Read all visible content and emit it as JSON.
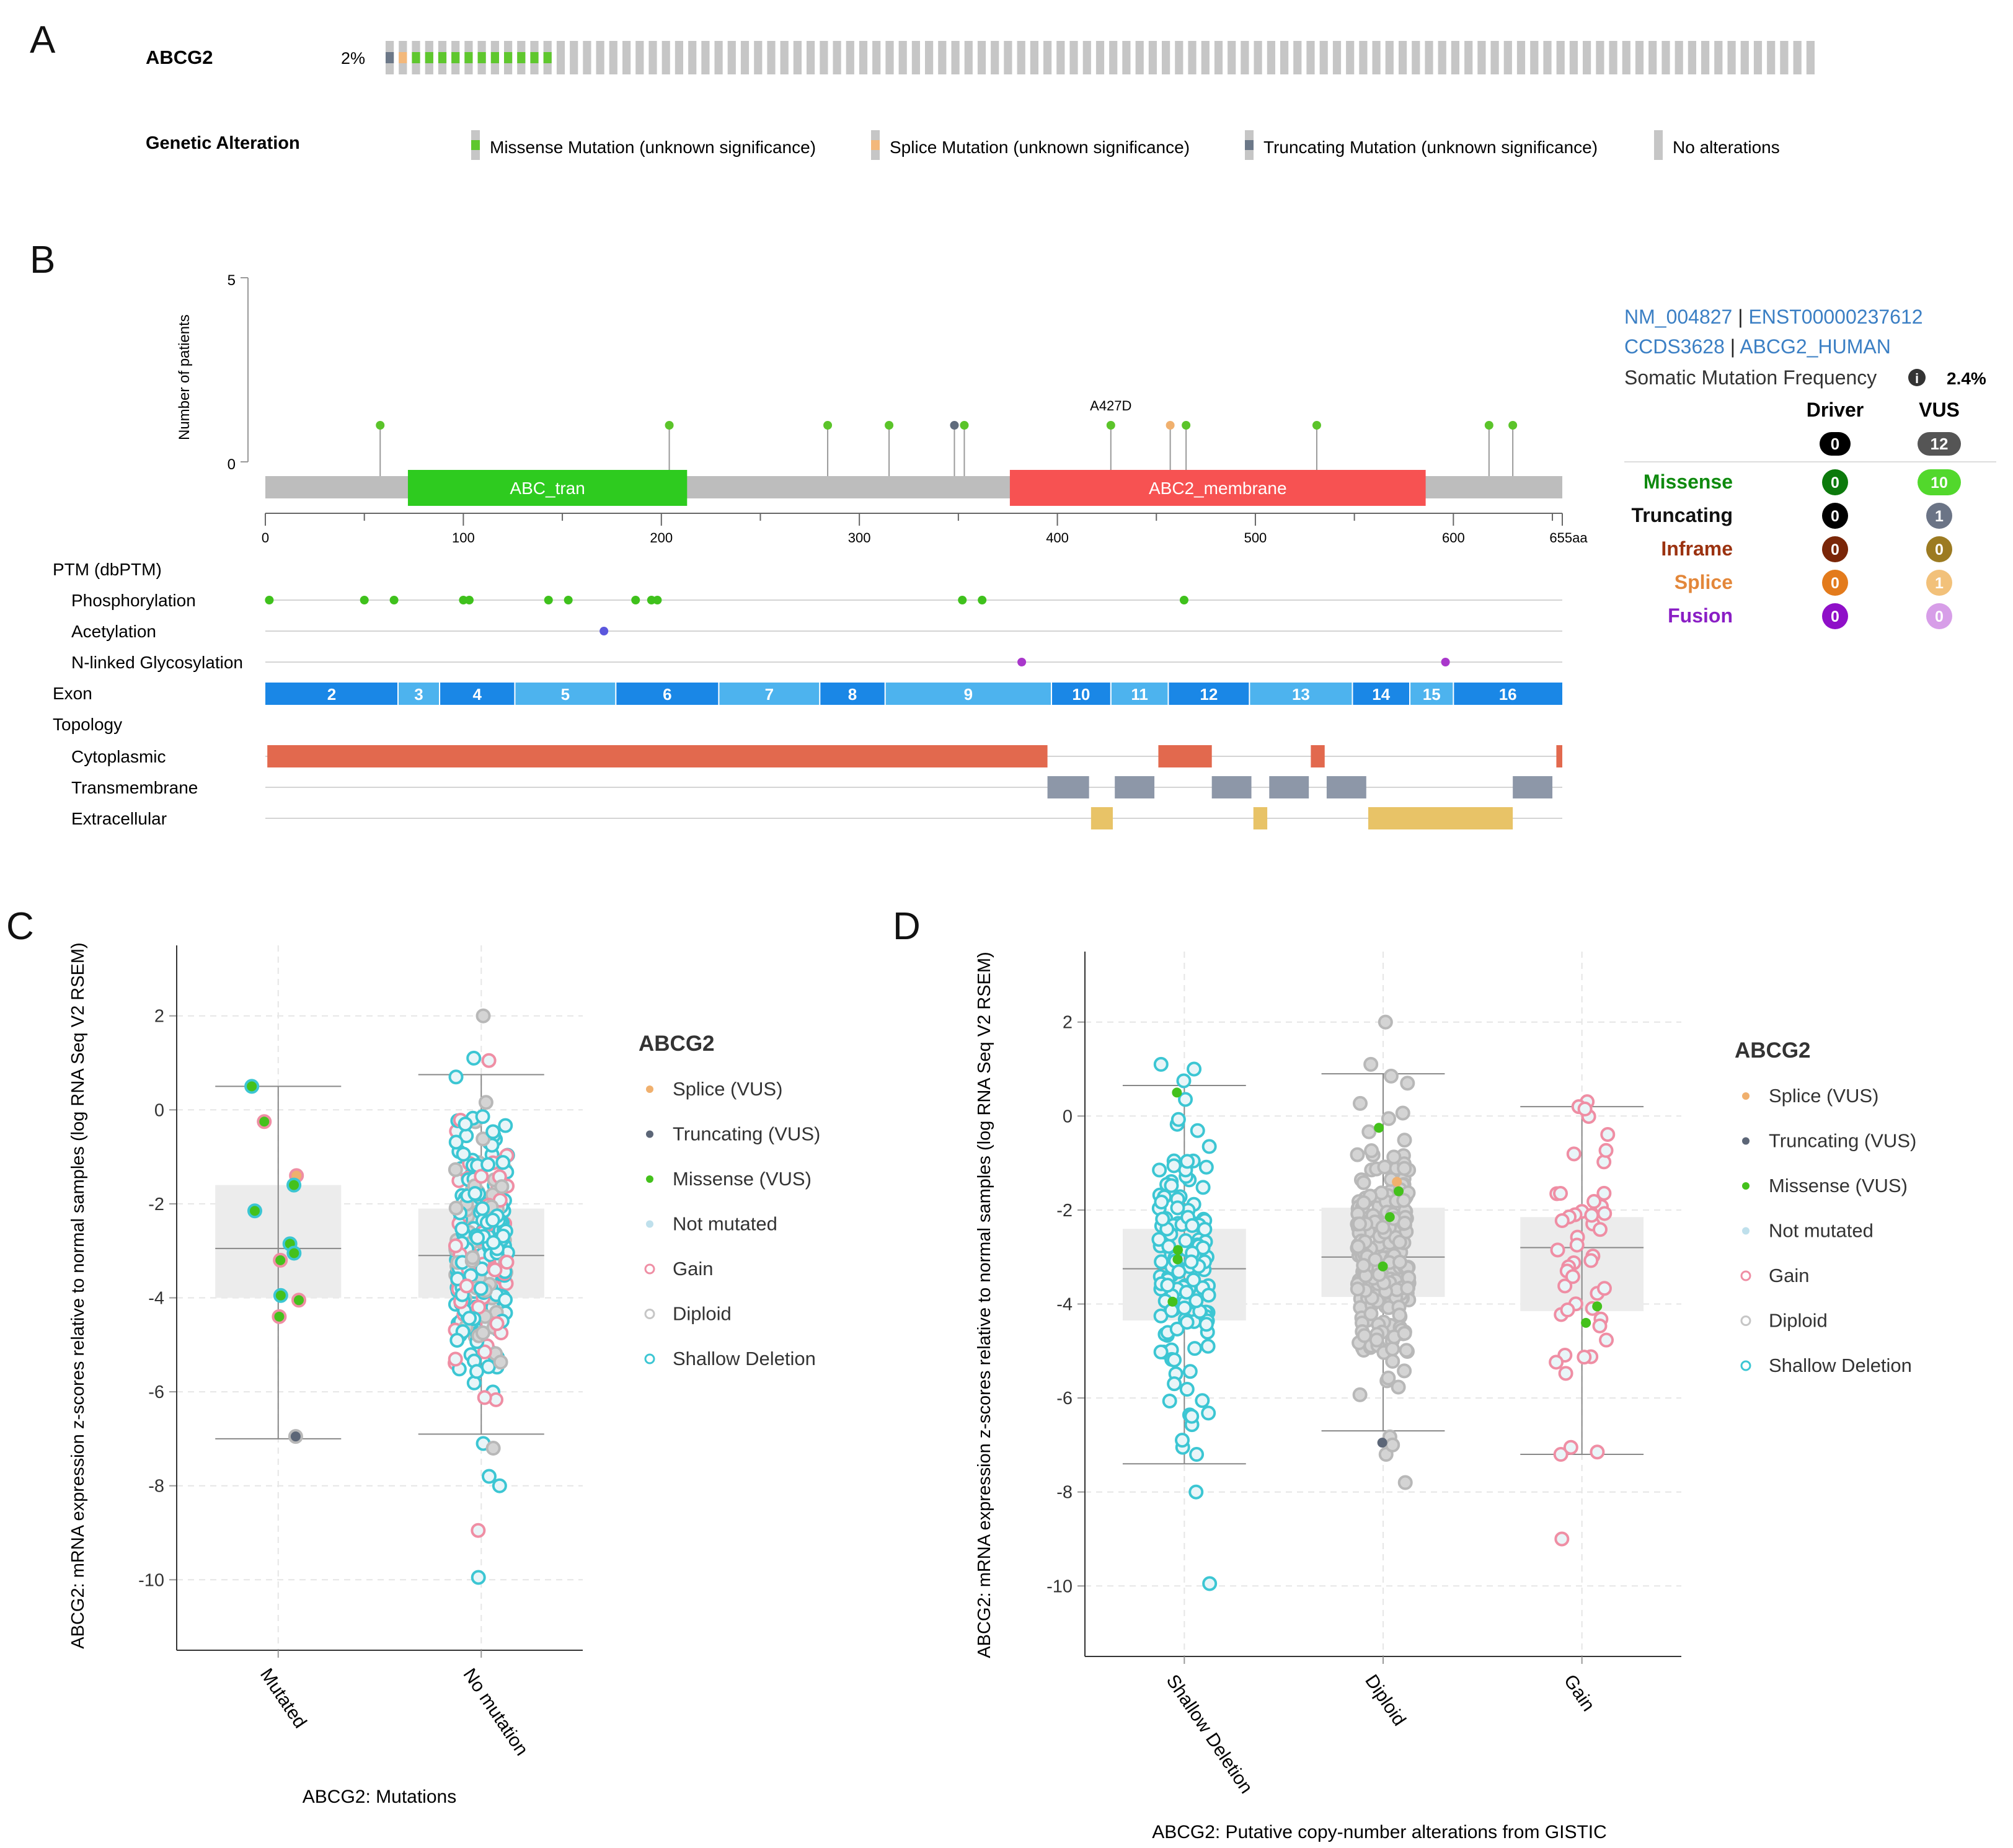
{
  "panel_labels": [
    "A",
    "B",
    "C",
    "D"
  ],
  "panelA": {
    "gene": "ABCG2",
    "freq": "2%",
    "samples": {
      "total": 109,
      "truncating": 1,
      "splice": 1,
      "missense": 11
    },
    "legend_title": "Genetic Alteration",
    "legend": [
      {
        "label": "Missense Mutation (unknown significance)",
        "color": "#5fc72e"
      },
      {
        "label": "Splice Mutation (unknown significance)",
        "color": "#f3b87b"
      },
      {
        "label": "Truncating Mutation (unknown significance)",
        "color": "#6c7888"
      },
      {
        "label": "No alterations",
        "color": "#c6c6c6"
      }
    ]
  },
  "panelB": {
    "ylabel": "Number of patients",
    "yticks": [
      "0",
      "5"
    ],
    "length": 655,
    "xticks": [
      0,
      100,
      200,
      300,
      400,
      500,
      600
    ],
    "end_label": "655aa",
    "annotation": "A427D",
    "lollipops": [
      {
        "pos": 58,
        "type": "missense"
      },
      {
        "pos": 204,
        "type": "missense"
      },
      {
        "pos": 284,
        "type": "missense"
      },
      {
        "pos": 315,
        "type": "missense"
      },
      {
        "pos": 348,
        "type": "truncating"
      },
      {
        "pos": 353,
        "type": "missense"
      },
      {
        "pos": 427,
        "type": "missense"
      },
      {
        "pos": 457,
        "type": "splice"
      },
      {
        "pos": 465,
        "type": "missense"
      },
      {
        "pos": 531,
        "type": "missense"
      },
      {
        "pos": 618,
        "type": "missense"
      },
      {
        "pos": 630,
        "type": "missense"
      }
    ],
    "domains": [
      {
        "label": "ABC_tran",
        "start": 72,
        "end": 213,
        "color": "#2ecb1f"
      },
      {
        "label": "ABC2_membrane",
        "start": 376,
        "end": 586,
        "color": "#f75252"
      }
    ],
    "ptm_title": "PTM (dbPTM)",
    "tracks": [
      {
        "label": "Phosphorylation",
        "color": "#3fc11c",
        "points": [
          2,
          50,
          65,
          100,
          103,
          143,
          153,
          187,
          195,
          198,
          352,
          362,
          464
        ]
      },
      {
        "label": "Acetylation",
        "color": "#5b57dd",
        "points": [
          171
        ]
      },
      {
        "label": "N-linked Glycosylation",
        "color": "#a937cb",
        "points": [
          382,
          596
        ]
      }
    ],
    "exon_label": "Exon",
    "exons": [
      {
        "n": "2",
        "start": 0,
        "end": 67
      },
      {
        "n": "3",
        "start": 67,
        "end": 88
      },
      {
        "n": "4",
        "start": 88,
        "end": 126
      },
      {
        "n": "5",
        "start": 126,
        "end": 177
      },
      {
        "n": "6",
        "start": 177,
        "end": 229
      },
      {
        "n": "7",
        "start": 229,
        "end": 280
      },
      {
        "n": "8",
        "start": 280,
        "end": 313
      },
      {
        "n": "9",
        "start": 313,
        "end": 397
      },
      {
        "n": "10",
        "start": 397,
        "end": 427
      },
      {
        "n": "11",
        "start": 427,
        "end": 456
      },
      {
        "n": "12",
        "start": 456,
        "end": 497
      },
      {
        "n": "13",
        "start": 497,
        "end": 549
      },
      {
        "n": "14",
        "start": 549,
        "end": 578
      },
      {
        "n": "15",
        "start": 578,
        "end": 600
      },
      {
        "n": "16",
        "start": 600,
        "end": 655
      }
    ],
    "topology_label": "Topology",
    "topology": [
      {
        "label": "Cytoplasmic",
        "color": "#e2694e",
        "segments": [
          [
            1,
            395
          ],
          [
            451,
            478
          ],
          [
            528,
            535
          ],
          [
            652,
            655
          ]
        ]
      },
      {
        "label": "Transmembrane",
        "color": "#8d97a8",
        "segments": [
          [
            395,
            416
          ],
          [
            429,
            449
          ],
          [
            478,
            498
          ],
          [
            507,
            527
          ],
          [
            536,
            556
          ],
          [
            630,
            650
          ]
        ]
      },
      {
        "label": "Extracellular",
        "color": "#e8c367",
        "segments": [
          [
            417,
            428
          ],
          [
            499,
            506
          ],
          [
            557,
            630
          ]
        ]
      }
    ],
    "side": {
      "line1a": "NM_004827",
      "sep": "|",
      "line1b": "ENST00000237612",
      "line2a": "CCDS3628",
      "line2b": "ABCG2_HUMAN",
      "freq_label": "Somatic Mutation Frequency",
      "freq_value": "2.4%",
      "col_driver": "Driver",
      "col_vus": "VUS",
      "total": {
        "driver": "0",
        "vus": "12"
      },
      "rows": [
        {
          "label": "Missense",
          "color": "#0f8a0f",
          "driver": "0",
          "vus": "10",
          "dcolor": "#0c7a0c",
          "vcolor": "#52d82c"
        },
        {
          "label": "Truncating",
          "color": "#111111",
          "driver": "0",
          "vus": "1",
          "dcolor": "#000000",
          "vcolor": "#6b7486"
        },
        {
          "label": "Inframe",
          "color": "#9b3210",
          "driver": "0",
          "vus": "0",
          "dcolor": "#7a2608",
          "vcolor": "#9c7b22"
        },
        {
          "label": "Splice",
          "color": "#e3873a",
          "driver": "0",
          "vus": "1",
          "dcolor": "#e37b1c",
          "vcolor": "#f2c17a"
        },
        {
          "label": "Fusion",
          "color": "#8a1ec5",
          "driver": "0",
          "vus": "0",
          "dcolor": "#8f0fc8",
          "vcolor": "#d79ee8"
        }
      ]
    }
  },
  "chart_data": [
    {
      "type": "box-scatter",
      "title": "ABCG2",
      "xlabel": "ABCG2: Mutations",
      "ylabel": "ABCG2: mRNA expression z-scores relative to normal samples (log RNA Seq V2 RSEM)",
      "categories": [
        "Mutated",
        "No mutation"
      ],
      "yticks": [
        "2",
        "0",
        "-2",
        "-4",
        "-6",
        "-8",
        "-10"
      ],
      "ylim": [
        -11.5,
        3.5
      ],
      "boxes": [
        {
          "low": -7.0,
          "q1": -4.0,
          "median": -2.95,
          "q3": -1.6,
          "high": 0.5
        },
        {
          "low": -6.9,
          "q1": -4.0,
          "median": -3.1,
          "q3": -2.1,
          "high": 0.75
        }
      ],
      "legend": [
        "Splice (VUS)",
        "Truncating (VUS)",
        "Missense (VUS)",
        "Not mutated",
        "Gain",
        "Diploid",
        "Shallow Deletion"
      ]
    },
    {
      "type": "box-scatter",
      "title": "ABCG2",
      "xlabel": "ABCG2: Putative copy-number alterations from GISTIC",
      "ylabel": "ABCG2: mRNA expression z-scores relative to normal samples (log RNA Seq V2 RSEM)",
      "categories": [
        "Shallow Deletion",
        "Diploid",
        "Gain"
      ],
      "yticks": [
        "2",
        "0",
        "-2",
        "-4",
        "-6",
        "-8",
        "-10"
      ],
      "ylim": [
        -11.5,
        3.5
      ],
      "boxes": [
        {
          "low": -7.4,
          "q1": -4.35,
          "median": -3.25,
          "q3": -2.4,
          "high": 0.65
        },
        {
          "low": -6.7,
          "q1": -3.85,
          "median": -3.0,
          "q3": -1.95,
          "high": 0.9
        },
        {
          "low": -7.2,
          "q1": -4.15,
          "median": -2.8,
          "q3": -2.15,
          "high": 0.2
        }
      ],
      "legend": [
        "Splice (VUS)",
        "Truncating (VUS)",
        "Missense (VUS)",
        "Not mutated",
        "Gain",
        "Diploid",
        "Shallow Deletion"
      ]
    }
  ],
  "colors": {
    "splice": "#f0b06e",
    "truncating": "#5c6677",
    "missense": "#44c11c",
    "not_mutated": "#bfe0ec",
    "gain": "#ef8ea4",
    "diploid": "#c6c6c6",
    "shallow": "#3cc6d3",
    "grid": "#e6e6e6",
    "axis": "#999999",
    "box": "#ececec"
  }
}
